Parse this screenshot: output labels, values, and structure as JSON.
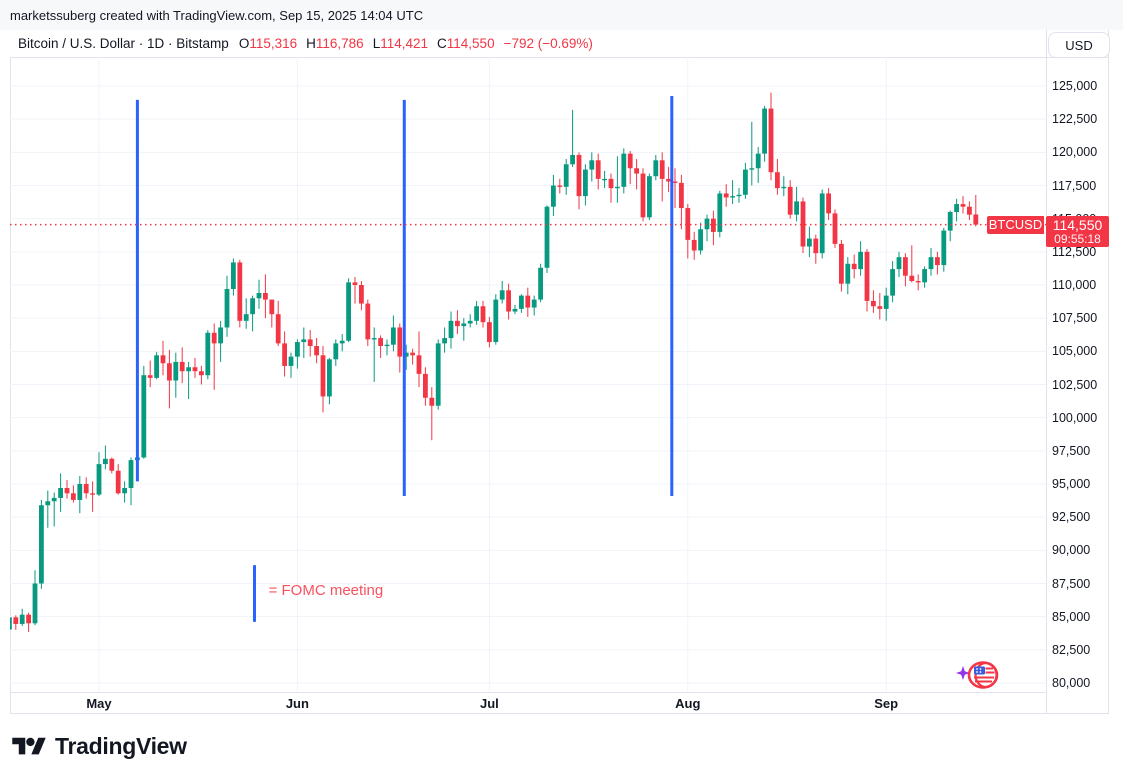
{
  "attribution_bar": {
    "text": "marketssuberg created with TradingView.com, Sep 15, 2025 14:04 UTC"
  },
  "header": {
    "symbol_title": "Bitcoin / U.S. Dollar · 1D · Bitstamp",
    "ohlc": {
      "open_label": "O",
      "open": "115,316",
      "high_label": "H",
      "high": "116,786",
      "low_label": "L",
      "low": "114,421",
      "close_label": "C",
      "close": "114,550",
      "change": "−792 (−0.69%)"
    },
    "currency_button_label": "USD"
  },
  "annotations": {
    "fomc_legend_text": "= FOMC meeting",
    "symbol_flag_label": "BTCUSD",
    "price_marker": {
      "price": "114,550",
      "countdown": "09:55:18"
    }
  },
  "footer": {
    "logo_text": "TradingView"
  },
  "colors": {
    "up": "#089981",
    "down": "#f23645",
    "fomc_line": "#2962ff",
    "grid": "#f0f3fa",
    "border": "#e0e3eb",
    "text": "#131722",
    "last_price_line": "#f23645"
  },
  "chart_data": {
    "type": "candlestick",
    "symbol": "BTCUSD",
    "interval": "1D",
    "exchange": "Bitstamp",
    "y_axis": {
      "min": 80000,
      "max": 125000,
      "step": 2500
    },
    "x_axis": {
      "labels": [
        {
          "label": "May",
          "index": 14
        },
        {
          "label": "Jun",
          "index": 45
        },
        {
          "label": "Jul",
          "index": 75
        },
        {
          "label": "Aug",
          "index": 106
        },
        {
          "label": "Sep",
          "index": 137
        }
      ]
    },
    "last_price": 114550,
    "fomc_lines": [
      {
        "index": 20,
        "price_top": 123950,
        "price_bottom": 95200
      },
      {
        "index": 61.7,
        "price_top": 123950,
        "price_bottom": 94100
      },
      {
        "index": 103.5,
        "price_top": 124250,
        "price_bottom": 94100
      }
    ],
    "fomc_legend": {
      "line_index": 38,
      "line_price_top": 88900,
      "line_price_bottom": 84600,
      "text_index": 40.5,
      "text_price": 86900
    },
    "candles": [
      [
        84030,
        85500,
        83700,
        84950
      ],
      [
        84950,
        85100,
        84000,
        84450
      ],
      [
        84450,
        85600,
        84300,
        85150
      ],
      [
        85150,
        85300,
        83850,
        84500
      ],
      [
        84500,
        88500,
        84350,
        87500
      ],
      [
        87500,
        93800,
        87100,
        93400
      ],
      [
        93400,
        94500,
        91700,
        93700
      ],
      [
        93700,
        94350,
        91800,
        93950
      ],
      [
        93950,
        95800,
        92900,
        94700
      ],
      [
        94700,
        95300,
        93900,
        94300
      ],
      [
        94300,
        94900,
        93600,
        93800
      ],
      [
        93800,
        95600,
        92800,
        95000
      ],
      [
        95000,
        95500,
        93900,
        94300
      ],
      [
        94300,
        95200,
        92900,
        94200
      ],
      [
        94200,
        97400,
        94100,
        96500
      ],
      [
        96500,
        97900,
        96100,
        96900
      ],
      [
        96900,
        97000,
        95800,
        96000
      ],
      [
        96000,
        96500,
        94200,
        94300
      ],
      [
        94300,
        95200,
        93600,
        94700
      ],
      [
        94700,
        97000,
        93400,
        96800
      ],
      [
        96800,
        97700,
        95800,
        97000
      ],
      [
        97000,
        103900,
        96900,
        103200
      ],
      [
        103200,
        104300,
        102300,
        103000
      ],
      [
        103000,
        104960,
        102900,
        104700
      ],
      [
        104700,
        105800,
        103200,
        104100
      ],
      [
        104100,
        105100,
        100700,
        102800
      ],
      [
        102800,
        104900,
        101500,
        104200
      ],
      [
        104200,
        105300,
        102600,
        103500
      ],
      [
        103500,
        104200,
        101400,
        103800
      ],
      [
        103800,
        104500,
        103000,
        103500
      ],
      [
        103500,
        103900,
        102500,
        103200
      ],
      [
        103200,
        106600,
        102900,
        106400
      ],
      [
        106400,
        107100,
        102100,
        105600
      ],
      [
        105600,
        107300,
        104200,
        106800
      ],
      [
        106800,
        110700,
        106100,
        109700
      ],
      [
        109700,
        112000,
        109200,
        111700
      ],
      [
        111700,
        111900,
        106800,
        107300
      ],
      [
        107300,
        109000,
        106700,
        107800
      ],
      [
        107800,
        109200,
        106500,
        109000
      ],
      [
        109000,
        110400,
        108200,
        109400
      ],
      [
        109400,
        110800,
        107500,
        108900
      ],
      [
        108900,
        108900,
        106800,
        107800
      ],
      [
        107800,
        108800,
        105400,
        105600
      ],
      [
        105600,
        106500,
        103100,
        103900
      ],
      [
        103900,
        104900,
        103000,
        104600
      ],
      [
        104600,
        105900,
        103700,
        105700
      ],
      [
        105700,
        106800,
        104500,
        105900
      ],
      [
        105900,
        106600,
        104600,
        105400
      ],
      [
        105400,
        106000,
        104100,
        104700
      ],
      [
        104700,
        105400,
        100400,
        101600
      ],
      [
        101600,
        104500,
        101000,
        104400
      ],
      [
        104400,
        105900,
        103900,
        105600
      ],
      [
        105600,
        106300,
        105000,
        105800
      ],
      [
        105800,
        110500,
        105700,
        110200
      ],
      [
        110200,
        110600,
        108600,
        110000
      ],
      [
        110000,
        110300,
        108100,
        108600
      ],
      [
        108600,
        108900,
        105400,
        105900
      ],
      [
        105900,
        106800,
        102700,
        106000
      ],
      [
        106000,
        106200,
        104500,
        105400
      ],
      [
        105400,
        105900,
        104700,
        105500
      ],
      [
        105500,
        107700,
        105000,
        106800
      ],
      [
        106800,
        107100,
        103400,
        104600
      ],
      [
        104600,
        105500,
        103600,
        104900
      ],
      [
        104900,
        105200,
        104000,
        104700
      ],
      [
        104700,
        106500,
        102300,
        103300
      ],
      [
        103300,
        103800,
        100900,
        101500
      ],
      [
        101500,
        102300,
        98300,
        100900
      ],
      [
        100900,
        105900,
        100600,
        105600
      ],
      [
        105600,
        106800,
        104900,
        106000
      ],
      [
        106000,
        108000,
        105200,
        107300
      ],
      [
        107300,
        108100,
        106300,
        106900
      ],
      [
        106900,
        107500,
        105800,
        107100
      ],
      [
        107100,
        107800,
        106800,
        107300
      ],
      [
        107300,
        108800,
        107000,
        108400
      ],
      [
        108400,
        108800,
        106800,
        107200
      ],
      [
        107200,
        107600,
        105300,
        105700
      ],
      [
        105700,
        109300,
        105500,
        108900
      ],
      [
        108900,
        110300,
        108600,
        109600
      ],
      [
        109600,
        110100,
        107400,
        108000
      ],
      [
        108000,
        108500,
        107800,
        108200
      ],
      [
        108200,
        109300,
        107900,
        109200
      ],
      [
        109200,
        109800,
        107600,
        108300
      ],
      [
        108300,
        109200,
        107700,
        108900
      ],
      [
        108900,
        111600,
        108700,
        111300
      ],
      [
        111300,
        116000,
        110900,
        115900
      ],
      [
        115900,
        118300,
        115200,
        117500
      ],
      [
        117500,
        118000,
        116900,
        117400
      ],
      [
        117400,
        119500,
        116800,
        119100
      ],
      [
        119100,
        123200,
        118900,
        119800
      ],
      [
        119800,
        120000,
        115700,
        116700
      ],
      [
        116700,
        119100,
        116000,
        118700
      ],
      [
        118700,
        120000,
        117800,
        119400
      ],
      [
        119400,
        119900,
        117200,
        118000
      ],
      [
        118000,
        118600,
        117300,
        118000
      ],
      [
        118000,
        118400,
        116200,
        117300
      ],
      [
        117300,
        119700,
        116200,
        117400
      ],
      [
        117400,
        120300,
        116900,
        119900
      ],
      [
        119900,
        120100,
        117600,
        118800
      ],
      [
        118800,
        119500,
        117200,
        118400
      ],
      [
        118400,
        118800,
        114800,
        115100
      ],
      [
        115100,
        118400,
        114900,
        118200
      ],
      [
        118200,
        119800,
        117900,
        119400
      ],
      [
        119400,
        120000,
        116300,
        118000
      ],
      [
        118000,
        118900,
        117000,
        117800
      ],
      [
        117800,
        118800,
        115800,
        117700
      ],
      [
        117700,
        118300,
        114200,
        115800
      ],
      [
        115800,
        116100,
        112000,
        113400
      ],
      [
        113400,
        114000,
        111900,
        112600
      ],
      [
        112600,
        114700,
        112300,
        114200
      ],
      [
        114200,
        115300,
        113300,
        115000
      ],
      [
        115000,
        115600,
        113000,
        114000
      ],
      [
        114000,
        117100,
        113600,
        116900
      ],
      [
        116900,
        117600,
        115900,
        116600
      ],
      [
        116600,
        117900,
        116100,
        116700
      ],
      [
        116700,
        117300,
        116200,
        116800
      ],
      [
        116800,
        119200,
        116500,
        118700
      ],
      [
        118700,
        122300,
        117500,
        118800
      ],
      [
        118800,
        120400,
        117700,
        119900
      ],
      [
        119900,
        123500,
        119300,
        123300
      ],
      [
        123300,
        124500,
        117900,
        118500
      ],
      [
        118500,
        119500,
        116800,
        117300
      ],
      [
        117300,
        118200,
        116700,
        117400
      ],
      [
        117400,
        117900,
        115000,
        115300
      ],
      [
        115300,
        117400,
        114800,
        116300
      ],
      [
        116300,
        116600,
        112400,
        112900
      ],
      [
        112900,
        114400,
        112100,
        113500
      ],
      [
        113500,
        113800,
        111600,
        112400
      ],
      [
        112400,
        117200,
        112000,
        116900
      ],
      [
        116900,
        117300,
        114900,
        115400
      ],
      [
        115400,
        115700,
        112800,
        113100
      ],
      [
        113100,
        113400,
        109500,
        110100
      ],
      [
        110100,
        112100,
        109300,
        111600
      ],
      [
        111600,
        112300,
        110500,
        111200
      ],
      [
        111200,
        113300,
        110700,
        112500
      ],
      [
        112500,
        112700,
        108000,
        108800
      ],
      [
        108800,
        109600,
        107900,
        108400
      ],
      [
        108400,
        109400,
        107400,
        108200
      ],
      [
        108200,
        109800,
        107300,
        109200
      ],
      [
        109200,
        111800,
        108700,
        111200
      ],
      [
        111200,
        112500,
        110600,
        112100
      ],
      [
        112100,
        112400,
        109900,
        110700
      ],
      [
        110700,
        113000,
        110200,
        110300
      ],
      [
        110300,
        110800,
        109600,
        110200
      ],
      [
        110200,
        111400,
        109800,
        111200
      ],
      [
        111200,
        112800,
        110700,
        112100
      ],
      [
        112100,
        112500,
        110800,
        111500
      ],
      [
        111500,
        114300,
        111000,
        114100
      ],
      [
        114100,
        115600,
        113300,
        115500
      ],
      [
        115500,
        116500,
        114800,
        116100
      ],
      [
        116100,
        116700,
        115400,
        115900
      ],
      [
        115900,
        116300,
        114900,
        115300
      ],
      [
        115316,
        116786,
        114421,
        114550
      ]
    ]
  }
}
